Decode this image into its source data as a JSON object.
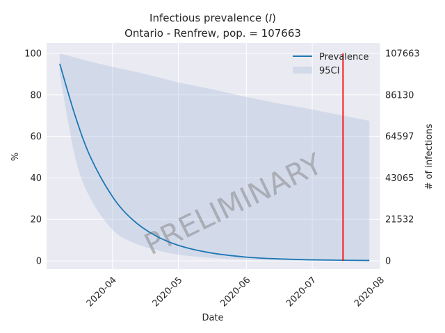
{
  "chart_data": {
    "type": "line",
    "title_line1_prefix": "Infectious prevalence (",
    "title_line1_symbol": "I",
    "title_line1_suffix": ")",
    "title_line2": "Ontario - Renfrew, pop. = 107663",
    "xlabel": "Date",
    "ylabel": "%",
    "ylabel_right": "# of infections",
    "ylim": [
      -4,
      105
    ],
    "y_ticks": [
      0,
      20,
      40,
      60,
      80,
      100
    ],
    "y_right_ticks": [
      {
        "value": 0,
        "label": "0"
      },
      {
        "value": 20,
        "label": "21532"
      },
      {
        "value": 40,
        "label": "43065"
      },
      {
        "value": 60,
        "label": "64597"
      },
      {
        "value": 80,
        "label": "86130"
      },
      {
        "value": 100,
        "label": "107663"
      }
    ],
    "xlim": [
      "2020-03-02",
      "2020-08-01"
    ],
    "x_ticks": [
      {
        "date": "2020-04-01",
        "label": "2020-04"
      },
      {
        "date": "2020-05-01",
        "label": "2020-05"
      },
      {
        "date": "2020-06-01",
        "label": "2020-06"
      },
      {
        "date": "2020-07-01",
        "label": "2020-07"
      },
      {
        "date": "2020-08-01",
        "label": "2020-08"
      }
    ],
    "series": [
      {
        "name": "Prevalence",
        "color": "#1f77b4",
        "x": [
          "2020-03-08",
          "2020-03-15",
          "2020-03-22",
          "2020-04-01",
          "2020-04-10",
          "2020-04-20",
          "2020-05-01",
          "2020-05-15",
          "2020-06-01",
          "2020-06-15",
          "2020-07-01",
          "2020-07-15",
          "2020-07-27"
        ],
        "y": [
          95,
          70,
          50,
          31,
          20,
          12.5,
          7.5,
          4,
          1.8,
          1,
          0.5,
          0.3,
          0.2
        ]
      }
    ],
    "band": {
      "name": "95CI",
      "color": "#b0c4de",
      "x": [
        "2020-03-08",
        "2020-03-15",
        "2020-03-22",
        "2020-04-01",
        "2020-04-10",
        "2020-04-20",
        "2020-05-01",
        "2020-05-15",
        "2020-06-01",
        "2020-06-15",
        "2020-07-01",
        "2020-07-15",
        "2020-07-27"
      ],
      "upper": [
        100,
        98,
        96,
        93.5,
        91.5,
        89,
        86,
        83,
        79,
        76,
        73,
        70,
        67.5
      ],
      "lower": [
        90,
        50,
        30,
        15,
        9,
        5.5,
        3,
        1.5,
        0.5,
        0.2,
        0.1,
        0.05,
        0.02
      ]
    },
    "vline": {
      "x": "2020-07-15",
      "y_from": 0,
      "y_to": 100,
      "color": "#ff0000"
    },
    "watermark": "PRELIMINARY",
    "legend_position": "top-right",
    "grid": true
  }
}
